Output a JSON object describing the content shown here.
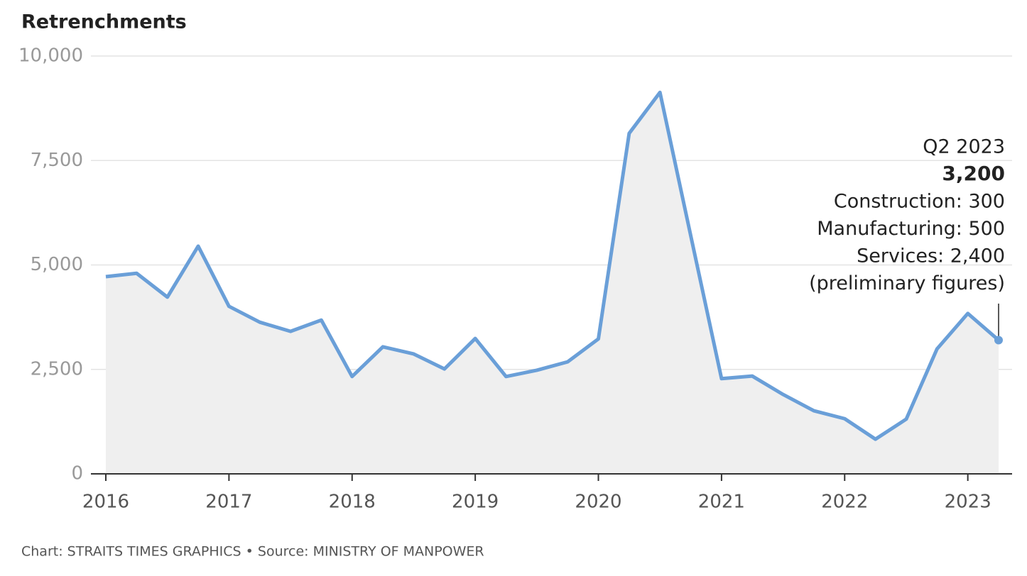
{
  "chart_data": {
    "type": "area",
    "title": "Retrenchments",
    "x": [
      2016,
      2016.25,
      2016.5,
      2016.75,
      2017,
      2017.25,
      2017.5,
      2017.75,
      2018,
      2018.25,
      2018.5,
      2018.75,
      2019,
      2019.25,
      2019.5,
      2019.75,
      2020,
      2020.25,
      2020.5,
      2020.75,
      2021,
      2021.25,
      2021.5,
      2021.75,
      2022,
      2022.25,
      2022.5,
      2022.75,
      2023,
      2023.25
    ],
    "series": [
      {
        "name": "Retrenchments",
        "color": "#6a9fd8",
        "fill": "#efefef",
        "values": [
          4720,
          4800,
          4230,
          5450,
          4010,
          3630,
          3410,
          3680,
          2330,
          3040,
          2870,
          2510,
          3240,
          2330,
          2480,
          2680,
          3230,
          8150,
          9130,
          5700,
          2280,
          2340,
          1900,
          1510,
          1320,
          830,
          1310,
          2990,
          3840,
          3200
        ]
      }
    ],
    "xlim": [
      2016,
      2023.25
    ],
    "xticks": [
      2016,
      2017,
      2018,
      2019,
      2020,
      2021,
      2022,
      2023
    ],
    "ylim": [
      0,
      10000
    ],
    "yticks": [
      0,
      {
        "value": 2500,
        "label": "2,500"
      },
      {
        "value": 5000,
        "label": "5,000"
      },
      {
        "value": 7500,
        "label": "7,500"
      },
      {
        "value": 10000,
        "label": "10,000"
      }
    ],
    "grid": true,
    "annotation": {
      "title": "Q2 2023",
      "value": "3,200",
      "lines": [
        "Construction: 300",
        "Manufacturing: 500",
        "Services: 2,400",
        "(preliminary figures)"
      ]
    },
    "source": "Chart: STRAITS TIMES GRAPHICS • Source: MINISTRY OF MANPOWER"
  }
}
